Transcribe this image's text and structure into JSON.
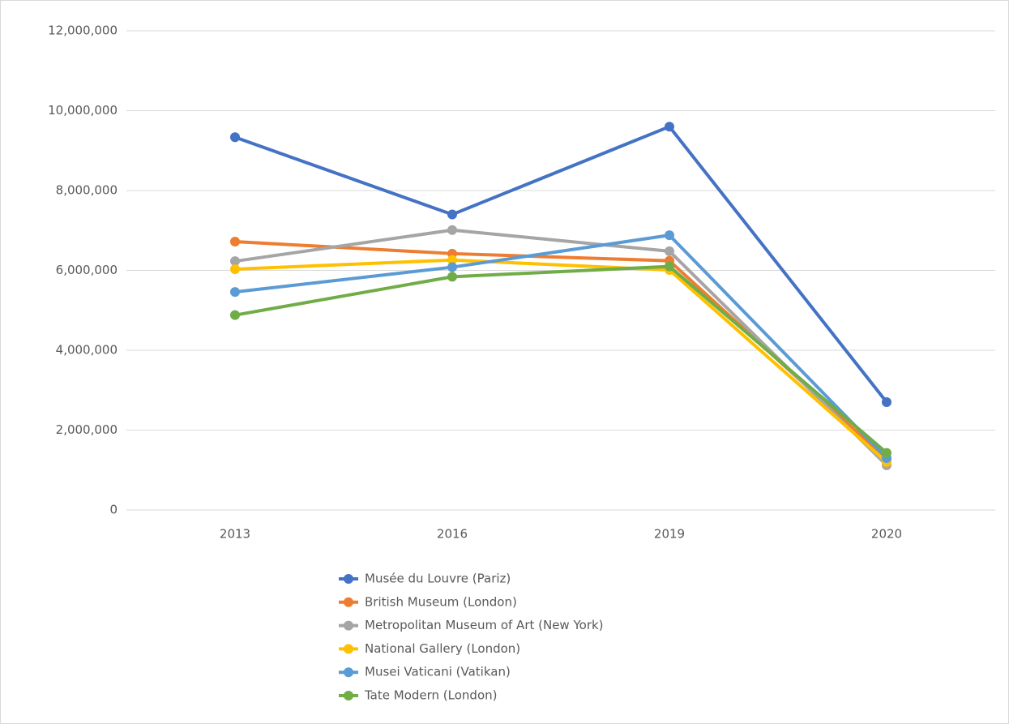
{
  "chart_data": {
    "type": "line",
    "categories": [
      "2013",
      "2016",
      "2019",
      "2020"
    ],
    "series": [
      {
        "name": "Musée du Louvre (Pariz)",
        "color": "#4472c4",
        "values": [
          9334000,
          7400000,
          9600000,
          2700000
        ]
      },
      {
        "name": "British Museum (London)",
        "color": "#ed7d31",
        "values": [
          6720000,
          6420000,
          6240000,
          1270000
        ]
      },
      {
        "name": "Metropolitan Museum of Art (New York)",
        "color": "#a5a5a5",
        "values": [
          6230000,
          7010000,
          6480000,
          1120000
        ]
      },
      {
        "name": "National Gallery (London)",
        "color": "#ffc000",
        "values": [
          6030000,
          6260000,
          6010000,
          1200000
        ]
      },
      {
        "name": "Musei Vaticani (Vatikan)",
        "color": "#5b9bd5",
        "values": [
          5460000,
          6080000,
          6880000,
          1300000
        ]
      },
      {
        "name": "Tate Modern (London)",
        "color": "#70ad47",
        "values": [
          4880000,
          5840000,
          6100000,
          1430000
        ]
      }
    ],
    "ylim": [
      0,
      12000000
    ],
    "yticks": [
      0,
      {
        "value": 2000000,
        "label": "2,000,000"
      },
      {
        "value": 4000000,
        "label": "4,000,000"
      },
      {
        "value": 6000000,
        "label": "6,000,000"
      },
      {
        "value": 8000000,
        "label": "8,000,000"
      },
      {
        "value": 10000000,
        "label": "10,000,000"
      },
      {
        "value": 12000000,
        "label": "12,000,000"
      }
    ],
    "grid": true,
    "legend": "bottom"
  }
}
